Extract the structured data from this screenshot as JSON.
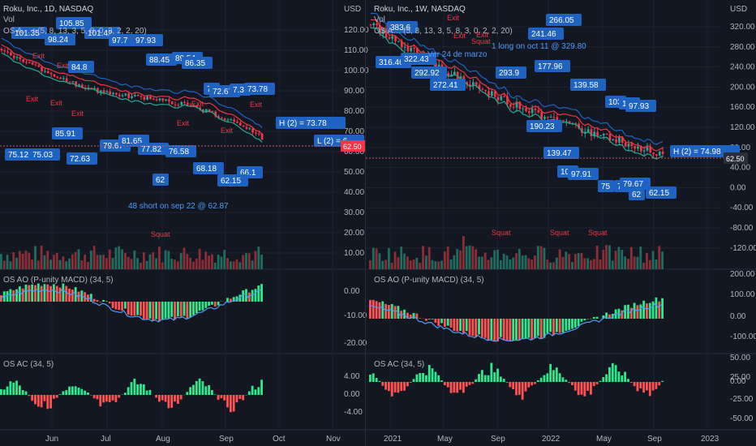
{
  "left": {
    "symbol": "Roku, Inc., 1D, NASDAQ",
    "vol_label": "Vol",
    "ind1": "OS A… r (5, 8, 13, 3, 5, 8, 0, 2, 2, 2, 20)",
    "currency": "USD",
    "price_axis": [
      "120.00",
      "110.00",
      "100.00",
      "90.00",
      "80.00",
      "70.00",
      "60.00",
      "50.00",
      "40.00",
      "30.00",
      "20.00",
      "10.00"
    ],
    "ao_label": "OS AO (P-unity MACD) (34, 5)",
    "ao_axis": [
      "0.00",
      "-10.00",
      "-20.00"
    ],
    "ac_label": "OS AC (34, 5)",
    "ac_axis": [
      "4.00",
      "0.00",
      "-4.00"
    ],
    "time_axis": [
      "Jun",
      "Jul",
      "Aug",
      "Sep",
      "Oct",
      "Nov"
    ],
    "boxes": [
      "101.35",
      "105.85",
      "98.24",
      "101.42",
      "97.7",
      "97.93",
      "84.8",
      "88.45",
      "89.54",
      "86.35",
      "74",
      "72.67",
      "7.3",
      "73.78",
      "85.91",
      "79.67",
      "81.65",
      "77.82",
      "76.58",
      "75.12",
      "75.03",
      "72.63",
      "62",
      "68.18",
      "66.1",
      "62.15"
    ],
    "h_label": "H (2) = 73.78",
    "l_label": "L (2) = 6",
    "last_price": "62.50",
    "short_note": "48 short on sep 22 @ 62.87",
    "squat_text": "Squat",
    "exit_text": "Exit"
  },
  "right": {
    "symbol": "Roku, Inc., 1W, NASDAQ",
    "vol_label": "Vol",
    "ind1": "OS A… (5, 8, 13, 3, 5, 8, 3, 0, 2, 2, 20)",
    "currency": "USD",
    "price_axis": [
      "320.00",
      "280.00",
      "240.00",
      "200.00",
      "160.00",
      "120.00",
      "80.00",
      "40.00",
      "0.00",
      "-40.00",
      "-80.00",
      "-120.00"
    ],
    "ao_label": "OS AO (P-unity MACD) (34, 5)",
    "ao_axis": [
      "200.00",
      "100.00",
      "0.00",
      "-100.00"
    ],
    "ac_label": "OS AC (34, 5)",
    "ac_axis": [
      "50.00",
      "25.00",
      "0.00",
      "-25.00",
      "-50.00"
    ],
    "time_axis": [
      "2021",
      "May",
      "Sep",
      "2022",
      "May",
      "Sep",
      "2023"
    ],
    "boxes": [
      "383.6",
      "266.05",
      "316.46",
      "322.43",
      "241.46",
      "292.92",
      "272.41",
      "293.9",
      "177.96",
      "139.58",
      "103",
      "101",
      "97.93",
      "190.23",
      "139.47",
      "100",
      "97.91",
      "75",
      "71",
      "79.67",
      "62",
      "62.15"
    ],
    "h_label": "H (2) = 74.98",
    "last_price": "62.50",
    "note_long": "1 long on oct 11 @ 329.80",
    "note_mar": "Ver 24 de marzo",
    "squat_text": "Squat",
    "exit_text": "Exit"
  }
}
